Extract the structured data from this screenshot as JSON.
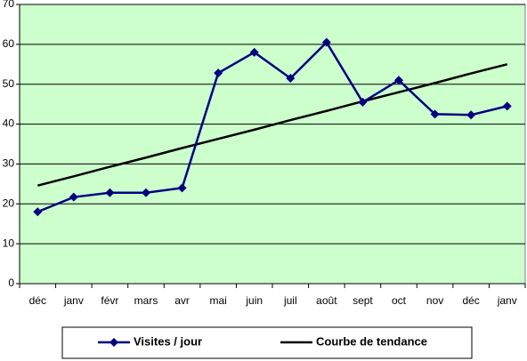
{
  "chart_data": {
    "type": "line",
    "categories": [
      "déc",
      "janv",
      "févr",
      "mars",
      "avr",
      "mai",
      "juin",
      "juil",
      "août",
      "sept",
      "oct",
      "nov",
      "déc",
      "janv"
    ],
    "series": [
      {
        "name": "Visites / jour",
        "color": "#000080",
        "marker": "diamond",
        "values": [
          18,
          21.7,
          22.8,
          22.8,
          24,
          52.8,
          58,
          51.5,
          60.5,
          45.5,
          51,
          42.5,
          42.3,
          44.5
        ]
      },
      {
        "name": "Courbe de tendance",
        "color": "#000000",
        "marker": "none",
        "values": [
          24.6,
          26.9,
          29.3,
          31.6,
          34.0,
          36.3,
          38.6,
          41.0,
          43.3,
          45.7,
          48.0,
          50.3,
          52.7,
          55.0
        ]
      }
    ],
    "ylim": [
      0,
      70
    ],
    "yticks": [
      0,
      10,
      20,
      30,
      40,
      50,
      60,
      70
    ],
    "grid": true,
    "background": "#ccffcc",
    "legend": "bottom"
  }
}
